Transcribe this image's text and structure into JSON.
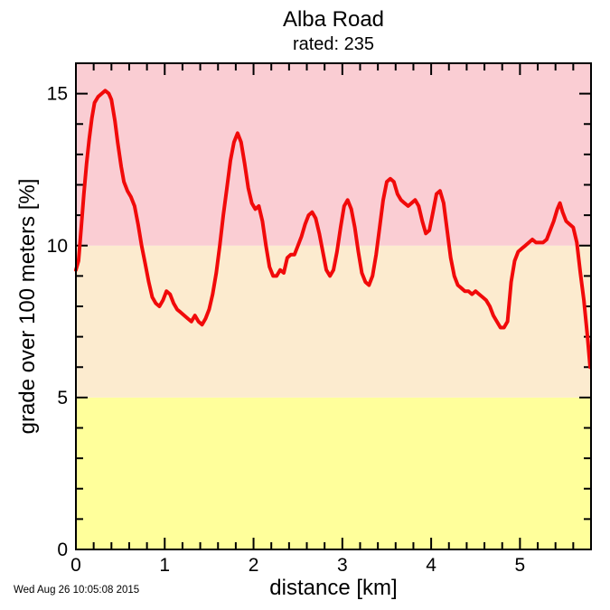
{
  "header": {
    "title": "Alba Road",
    "subtitle": "rated: 235"
  },
  "footer": {
    "timestamp": "Wed Aug 26 10:05:08 2015"
  },
  "chart_data": {
    "type": "line",
    "title": "Alba Road",
    "subtitle": "rated: 235",
    "xlabel": "distance [km]",
    "ylabel": "grade over 100 meters [%]",
    "xlim": [
      0,
      5.8
    ],
    "ylim": [
      0,
      16
    ],
    "x_major_ticks": [
      0,
      1,
      2,
      3,
      4,
      5
    ],
    "x_minor_step": 0.2,
    "y_major_ticks": [
      0,
      5,
      10,
      15
    ],
    "y_minor_step": 1,
    "grid": false,
    "legend": false,
    "frame_color": "#000000",
    "line_color": "#f10a0a",
    "line_width": 4,
    "zones": [
      {
        "label": "grade 0-5%",
        "from": 0,
        "to": 5,
        "color": "#ffff9b"
      },
      {
        "label": "grade 5-10%",
        "from": 5,
        "to": 10,
        "color": "#fcebcf"
      },
      {
        "label": "grade 10%+",
        "from": 10,
        "to": 16,
        "color": "#facdd3"
      }
    ],
    "series": [
      {
        "name": "grade over 100 meters",
        "points": [
          [
            0.0,
            9.2
          ],
          [
            0.03,
            9.5
          ],
          [
            0.06,
            10.6
          ],
          [
            0.09,
            11.7
          ],
          [
            0.12,
            12.7
          ],
          [
            0.15,
            13.5
          ],
          [
            0.18,
            14.2
          ],
          [
            0.21,
            14.7
          ],
          [
            0.25,
            14.9
          ],
          [
            0.29,
            15.0
          ],
          [
            0.33,
            15.1
          ],
          [
            0.37,
            15.0
          ],
          [
            0.4,
            14.8
          ],
          [
            0.44,
            14.1
          ],
          [
            0.47,
            13.4
          ],
          [
            0.51,
            12.6
          ],
          [
            0.54,
            12.1
          ],
          [
            0.58,
            11.8
          ],
          [
            0.62,
            11.6
          ],
          [
            0.66,
            11.3
          ],
          [
            0.7,
            10.7
          ],
          [
            0.74,
            10.0
          ],
          [
            0.78,
            9.4
          ],
          [
            0.82,
            8.8
          ],
          [
            0.86,
            8.3
          ],
          [
            0.9,
            8.1
          ],
          [
            0.94,
            8.0
          ],
          [
            0.98,
            8.2
          ],
          [
            1.02,
            8.5
          ],
          [
            1.06,
            8.4
          ],
          [
            1.1,
            8.1
          ],
          [
            1.14,
            7.9
          ],
          [
            1.18,
            7.8
          ],
          [
            1.22,
            7.7
          ],
          [
            1.26,
            7.6
          ],
          [
            1.3,
            7.5
          ],
          [
            1.34,
            7.7
          ],
          [
            1.38,
            7.5
          ],
          [
            1.42,
            7.4
          ],
          [
            1.46,
            7.6
          ],
          [
            1.5,
            7.9
          ],
          [
            1.54,
            8.4
          ],
          [
            1.58,
            9.1
          ],
          [
            1.62,
            10.0
          ],
          [
            1.66,
            11.0
          ],
          [
            1.7,
            11.9
          ],
          [
            1.74,
            12.8
          ],
          [
            1.78,
            13.4
          ],
          [
            1.82,
            13.7
          ],
          [
            1.86,
            13.4
          ],
          [
            1.9,
            12.7
          ],
          [
            1.94,
            11.9
          ],
          [
            1.98,
            11.4
          ],
          [
            2.02,
            11.2
          ],
          [
            2.06,
            11.3
          ],
          [
            2.1,
            10.8
          ],
          [
            2.14,
            10.0
          ],
          [
            2.18,
            9.3
          ],
          [
            2.22,
            9.0
          ],
          [
            2.26,
            9.0
          ],
          [
            2.3,
            9.2
          ],
          [
            2.34,
            9.1
          ],
          [
            2.38,
            9.6
          ],
          [
            2.42,
            9.7
          ],
          [
            2.46,
            9.7
          ],
          [
            2.5,
            10.0
          ],
          [
            2.54,
            10.3
          ],
          [
            2.58,
            10.7
          ],
          [
            2.62,
            11.0
          ],
          [
            2.66,
            11.1
          ],
          [
            2.7,
            10.9
          ],
          [
            2.74,
            10.4
          ],
          [
            2.78,
            9.8
          ],
          [
            2.82,
            9.2
          ],
          [
            2.86,
            9.0
          ],
          [
            2.9,
            9.2
          ],
          [
            2.94,
            9.8
          ],
          [
            2.98,
            10.6
          ],
          [
            3.02,
            11.3
          ],
          [
            3.06,
            11.5
          ],
          [
            3.1,
            11.2
          ],
          [
            3.14,
            10.6
          ],
          [
            3.18,
            9.8
          ],
          [
            3.22,
            9.1
          ],
          [
            3.26,
            8.8
          ],
          [
            3.3,
            8.7
          ],
          [
            3.34,
            9.0
          ],
          [
            3.38,
            9.7
          ],
          [
            3.42,
            10.6
          ],
          [
            3.46,
            11.5
          ],
          [
            3.5,
            12.1
          ],
          [
            3.54,
            12.2
          ],
          [
            3.58,
            12.1
          ],
          [
            3.62,
            11.7
          ],
          [
            3.66,
            11.5
          ],
          [
            3.7,
            11.4
          ],
          [
            3.74,
            11.3
          ],
          [
            3.78,
            11.4
          ],
          [
            3.82,
            11.5
          ],
          [
            3.86,
            11.3
          ],
          [
            3.9,
            10.8
          ],
          [
            3.94,
            10.4
          ],
          [
            3.98,
            10.5
          ],
          [
            4.02,
            11.1
          ],
          [
            4.06,
            11.7
          ],
          [
            4.1,
            11.8
          ],
          [
            4.14,
            11.4
          ],
          [
            4.18,
            10.5
          ],
          [
            4.22,
            9.6
          ],
          [
            4.26,
            9.0
          ],
          [
            4.3,
            8.7
          ],
          [
            4.34,
            8.6
          ],
          [
            4.38,
            8.5
          ],
          [
            4.42,
            8.5
          ],
          [
            4.46,
            8.4
          ],
          [
            4.5,
            8.5
          ],
          [
            4.54,
            8.4
          ],
          [
            4.58,
            8.3
          ],
          [
            4.62,
            8.2
          ],
          [
            4.66,
            8.0
          ],
          [
            4.7,
            7.7
          ],
          [
            4.74,
            7.5
          ],
          [
            4.78,
            7.3
          ],
          [
            4.82,
            7.3
          ],
          [
            4.86,
            7.5
          ],
          [
            4.9,
            8.8
          ],
          [
            4.94,
            9.5
          ],
          [
            4.98,
            9.8
          ],
          [
            5.02,
            9.9
          ],
          [
            5.06,
            10.0
          ],
          [
            5.1,
            10.1
          ],
          [
            5.14,
            10.2
          ],
          [
            5.18,
            10.1
          ],
          [
            5.22,
            10.1
          ],
          [
            5.26,
            10.1
          ],
          [
            5.3,
            10.2
          ],
          [
            5.34,
            10.5
          ],
          [
            5.38,
            10.8
          ],
          [
            5.42,
            11.2
          ],
          [
            5.45,
            11.4
          ],
          [
            5.48,
            11.1
          ],
          [
            5.52,
            10.8
          ],
          [
            5.56,
            10.7
          ],
          [
            5.6,
            10.6
          ],
          [
            5.64,
            10.1
          ],
          [
            5.68,
            9.1
          ],
          [
            5.72,
            8.2
          ],
          [
            5.76,
            7.0
          ],
          [
            5.79,
            6.0
          ]
        ]
      }
    ]
  }
}
